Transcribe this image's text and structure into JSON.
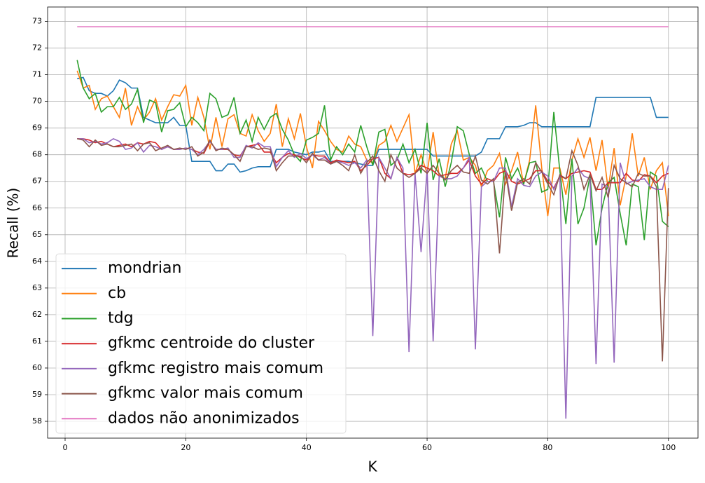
{
  "chart_data": {
    "type": "line",
    "xlabel": "K",
    "ylabel": "Recall (%)",
    "xlim": [
      -2.9,
      104.9
    ],
    "ylim": [
      57.37,
      73.54
    ],
    "xticks": [
      0,
      20,
      40,
      60,
      80,
      100
    ],
    "yticks": [
      58,
      59,
      60,
      61,
      62,
      63,
      64,
      65,
      66,
      67,
      68,
      69,
      70,
      71,
      72,
      73
    ],
    "grid": true,
    "legend": "lower left",
    "x": [
      2,
      3,
      4,
      5,
      6,
      7,
      8,
      9,
      10,
      11,
      12,
      13,
      14,
      15,
      16,
      17,
      18,
      19,
      20,
      21,
      22,
      23,
      24,
      25,
      26,
      27,
      28,
      29,
      30,
      31,
      32,
      33,
      34,
      35,
      36,
      37,
      38,
      39,
      40,
      41,
      42,
      43,
      44,
      45,
      46,
      47,
      48,
      49,
      50,
      51,
      52,
      53,
      54,
      55,
      56,
      57,
      58,
      59,
      60,
      61,
      62,
      63,
      64,
      65,
      66,
      67,
      68,
      69,
      70,
      71,
      72,
      73,
      74,
      75,
      76,
      77,
      78,
      79,
      80,
      81,
      82,
      83,
      84,
      85,
      86,
      87,
      88,
      89,
      90,
      91,
      92,
      93,
      94,
      95,
      96,
      97,
      98,
      99,
      100
    ],
    "series": [
      {
        "name": "mondrian",
        "color": "#1f77b4",
        "values": [
          70.85,
          70.9,
          70.4,
          70.3,
          70.3,
          70.2,
          70.4,
          70.8,
          70.7,
          70.5,
          70.5,
          69.4,
          69.3,
          69.2,
          69.2,
          69.2,
          69.4,
          69.1,
          69.1,
          67.75,
          67.75,
          67.75,
          67.75,
          67.4,
          67.4,
          67.65,
          67.65,
          67.35,
          67.4,
          67.5,
          67.55,
          67.55,
          67.55,
          68.2,
          68.2,
          68.2,
          68.1,
          68.05,
          68.0,
          68.1,
          68.1,
          68.15,
          67.75,
          67.75,
          67.75,
          67.75,
          67.7,
          67.65,
          67.6,
          67.6,
          68.2,
          68.2,
          68.2,
          68.2,
          68.2,
          68.2,
          68.2,
          68.2,
          68.2,
          67.95,
          67.95,
          67.95,
          67.95,
          67.95,
          67.95,
          67.95,
          67.95,
          68.1,
          68.6,
          68.6,
          68.6,
          69.05,
          69.05,
          69.05,
          69.1,
          69.2,
          69.2,
          69.05,
          69.05,
          69.05,
          69.05,
          69.05,
          69.05,
          69.05,
          69.05,
          69.05,
          70.15,
          70.15,
          70.15,
          70.15,
          70.15,
          70.15,
          70.15,
          70.15,
          70.15,
          70.15,
          69.4,
          69.4,
          69.4
        ]
      },
      {
        "name": "cb",
        "color": "#ff7f0e",
        "values": [
          71.15,
          70.5,
          70.6,
          69.7,
          70.1,
          70.2,
          69.8,
          69.4,
          70.5,
          69.1,
          69.8,
          69.3,
          69.6,
          70.1,
          69.3,
          69.8,
          70.25,
          70.2,
          70.6,
          69.1,
          70.15,
          69.4,
          68.2,
          69.4,
          68.3,
          69.35,
          69.5,
          68.8,
          68.7,
          69.5,
          68.9,
          68.5,
          68.8,
          69.9,
          68.3,
          69.35,
          68.6,
          69.55,
          68.3,
          67.5,
          69.25,
          68.9,
          68.5,
          68.2,
          68.1,
          68.7,
          68.4,
          68.3,
          67.8,
          67.7,
          68.35,
          68.5,
          69.1,
          68.5,
          69.0,
          69.5,
          67.3,
          68.0,
          67.3,
          68.85,
          67.2,
          67.1,
          68.4,
          68.9,
          67.8,
          67.9,
          67.6,
          66.8,
          67.4,
          67.6,
          68.05,
          66.9,
          67.4,
          68.1,
          66.9,
          67.8,
          69.85,
          67.5,
          65.7,
          67.5,
          67.5,
          66.5,
          67.8,
          68.6,
          67.9,
          68.65,
          67.4,
          68.55,
          66.7,
          68.25,
          66.1,
          67.2,
          68.8,
          67.2,
          67.9,
          66.7,
          67.4,
          67.7,
          65.7
        ]
      },
      {
        "name": "tdg",
        "color": "#2ca02c",
        "values": [
          71.55,
          70.5,
          70.1,
          70.3,
          69.6,
          69.8,
          69.8,
          70.15,
          69.7,
          69.9,
          70.45,
          69.2,
          70.05,
          69.95,
          68.85,
          69.65,
          69.7,
          69.95,
          69.05,
          69.4,
          69.2,
          68.9,
          70.3,
          70.1,
          69.4,
          69.5,
          70.15,
          68.8,
          69.3,
          68.5,
          69.4,
          68.95,
          69.4,
          69.55,
          68.95,
          68.55,
          68.0,
          67.75,
          68.55,
          68.65,
          68.8,
          69.85,
          67.8,
          68.3,
          68.0,
          68.4,
          68.1,
          69.1,
          68.3,
          67.6,
          68.85,
          68.95,
          67.6,
          67.8,
          68.4,
          67.7,
          68.2,
          67.3,
          69.2,
          67.05,
          67.85,
          66.8,
          67.7,
          69.05,
          68.9,
          68.0,
          67.3,
          67.5,
          67.0,
          67.0,
          65.65,
          67.9,
          67.1,
          67.5,
          66.9,
          67.7,
          67.75,
          66.6,
          66.7,
          69.6,
          67.4,
          65.4,
          67.85,
          65.4,
          66.0,
          67.2,
          64.6,
          66.0,
          66.95,
          67.15,
          65.8,
          64.6,
          66.9,
          66.8,
          64.8,
          67.35,
          67.2,
          65.5,
          65.3
        ]
      },
      {
        "name": "gfkmc centroide do cluster",
        "color": "#d62728",
        "values": [
          68.6,
          68.6,
          68.55,
          68.45,
          68.5,
          68.4,
          68.3,
          68.35,
          68.4,
          68.3,
          68.45,
          68.4,
          68.5,
          68.45,
          68.2,
          68.3,
          68.2,
          68.2,
          68.25,
          68.2,
          68.1,
          68.05,
          68.5,
          68.2,
          68.2,
          68.2,
          68.0,
          67.95,
          68.3,
          68.35,
          68.4,
          68.1,
          68.1,
          67.7,
          67.9,
          68.05,
          68.0,
          67.9,
          67.8,
          68.0,
          67.95,
          67.95,
          67.7,
          67.8,
          67.75,
          67.7,
          67.75,
          67.4,
          67.6,
          67.85,
          67.9,
          67.3,
          67.1,
          67.9,
          67.3,
          67.25,
          67.3,
          67.6,
          67.5,
          67.4,
          67.2,
          67.25,
          67.3,
          67.3,
          67.5,
          67.8,
          67.2,
          66.9,
          67.1,
          67.0,
          67.3,
          67.4,
          67.0,
          66.9,
          67.0,
          67.1,
          67.4,
          67.4,
          67.0,
          66.75,
          67.2,
          67.1,
          67.3,
          67.35,
          67.4,
          67.35,
          66.7,
          66.7,
          66.95,
          66.95,
          66.95,
          67.3,
          67.05,
          67.0,
          67.25,
          67.2,
          66.95,
          67.2,
          67.3
        ]
      },
      {
        "name": "gfkmc registro mais comum",
        "color": "#9467bd",
        "values": [
          68.6,
          68.6,
          68.45,
          68.5,
          68.4,
          68.45,
          68.6,
          68.5,
          68.2,
          68.25,
          68.45,
          68.1,
          68.35,
          68.3,
          68.2,
          68.3,
          68.2,
          68.2,
          68.25,
          68.2,
          68.0,
          68.2,
          68.5,
          68.2,
          68.2,
          68.25,
          67.9,
          67.9,
          68.35,
          68.25,
          68.45,
          68.3,
          68.3,
          67.55,
          67.9,
          68.15,
          67.9,
          68.05,
          67.85,
          68.0,
          67.8,
          67.9,
          67.65,
          67.75,
          67.7,
          67.6,
          67.7,
          67.5,
          67.8,
          61.2,
          67.9,
          67.5,
          67.1,
          67.9,
          67.5,
          60.6,
          67.3,
          64.35,
          67.45,
          61.0,
          67.2,
          67.1,
          67.1,
          67.2,
          67.5,
          67.9,
          60.7,
          66.8,
          67.0,
          67.0,
          67.5,
          67.5,
          66.05,
          67.1,
          66.85,
          66.8,
          67.2,
          67.35,
          67.2,
          66.7,
          67.2,
          58.1,
          67.2,
          67.5,
          67.2,
          67.1,
          60.15,
          66.9,
          66.8,
          60.2,
          67.7,
          66.9,
          67.0,
          67.05,
          67.1,
          66.8,
          66.7,
          66.7,
          67.6
        ]
      },
      {
        "name": "gfkmc valor mais comum",
        "color": "#8c564b",
        "values": [
          68.6,
          68.55,
          68.3,
          68.55,
          68.35,
          68.4,
          68.3,
          68.3,
          68.35,
          68.4,
          68.15,
          68.4,
          68.45,
          68.15,
          68.25,
          68.35,
          68.2,
          68.25,
          68.2,
          68.3,
          67.95,
          68.1,
          68.55,
          68.15,
          68.25,
          68.2,
          68.0,
          67.75,
          68.3,
          68.3,
          68.2,
          68.25,
          68.2,
          67.4,
          67.7,
          67.95,
          67.95,
          67.95,
          67.7,
          68.05,
          67.8,
          67.8,
          67.65,
          67.75,
          67.6,
          67.4,
          68.0,
          67.3,
          67.7,
          67.95,
          67.4,
          67.0,
          68.0,
          67.5,
          67.3,
          67.15,
          67.3,
          67.5,
          67.3,
          67.6,
          67.3,
          67.05,
          67.4,
          67.6,
          67.35,
          67.3,
          67.95,
          67.05,
          66.9,
          67.1,
          64.3,
          67.35,
          65.9,
          66.95,
          67.1,
          66.9,
          67.7,
          67.35,
          66.9,
          66.5,
          67.25,
          67.1,
          68.15,
          67.6,
          66.7,
          67.25,
          66.65,
          67.15,
          66.4,
          67.6,
          67.1,
          66.95,
          66.8,
          67.3,
          67.2,
          67.2,
          66.8,
          60.25,
          66.75
        ]
      },
      {
        "name": "dados não anonimizados",
        "color": "#e377c2",
        "values": [
          72.8,
          72.8,
          72.8,
          72.8,
          72.8,
          72.8,
          72.8,
          72.8,
          72.8,
          72.8,
          72.8,
          72.8,
          72.8,
          72.8,
          72.8,
          72.8,
          72.8,
          72.8,
          72.8,
          72.8,
          72.8,
          72.8,
          72.8,
          72.8,
          72.8,
          72.8,
          72.8,
          72.8,
          72.8,
          72.8,
          72.8,
          72.8,
          72.8,
          72.8,
          72.8,
          72.8,
          72.8,
          72.8,
          72.8,
          72.8,
          72.8,
          72.8,
          72.8,
          72.8,
          72.8,
          72.8,
          72.8,
          72.8,
          72.8,
          72.8,
          72.8,
          72.8,
          72.8,
          72.8,
          72.8,
          72.8,
          72.8,
          72.8,
          72.8,
          72.8,
          72.8,
          72.8,
          72.8,
          72.8,
          72.8,
          72.8,
          72.8,
          72.8,
          72.8,
          72.8,
          72.8,
          72.8,
          72.8,
          72.8,
          72.8,
          72.8,
          72.8,
          72.8,
          72.8,
          72.8,
          72.8,
          72.8,
          72.8,
          72.8,
          72.8,
          72.8,
          72.8,
          72.8,
          72.8,
          72.8,
          72.8,
          72.8,
          72.8,
          72.8,
          72.8,
          72.8,
          72.8,
          72.8,
          72.8
        ]
      }
    ]
  }
}
